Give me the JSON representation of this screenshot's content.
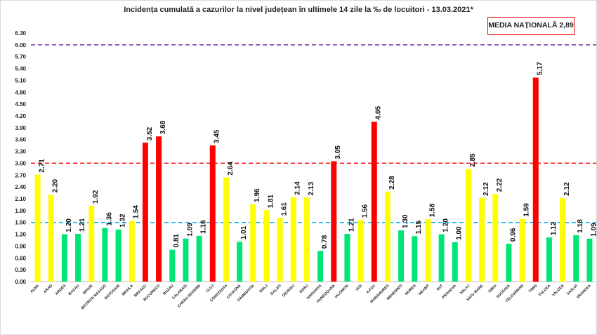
{
  "chart_data": {
    "type": "bar",
    "title": "Incidența cumulată a cazurilor la nivel județean în ultimele 14 zile la ‰ de locuitori - 13.03.2021*",
    "national_average_label": "MEDIA NAȚIONALĂ  2,89",
    "ylim": [
      0,
      6.3
    ],
    "yticks": [
      "0.00",
      "0.30",
      "0.60",
      "0.90",
      "1.20",
      "1.50",
      "1.80",
      "2.10",
      "2.40",
      "2.70",
      "3.00",
      "3.30",
      "3.60",
      "3.90",
      "4.20",
      "4.50",
      "4.80",
      "5.10",
      "5.40",
      "5.70",
      "6.00",
      "6.30"
    ],
    "grid": false,
    "reference_lines": [
      {
        "value": 6.0,
        "color": "#7030a0"
      },
      {
        "value": 3.0,
        "color": "#ff0000"
      },
      {
        "value": 1.5,
        "color": "#00b0f0"
      }
    ],
    "colors": {
      "red": "#ff0000",
      "yellow": "#ffff00",
      "green": "#00e676"
    },
    "categories": [
      "ALBA",
      "ARAD",
      "ARGES",
      "BACAU",
      "BIHOR",
      "BISTRITA NASAUD",
      "BOTOSANI",
      "BRAILA",
      "BRASOV",
      "BUCURESTI",
      "BUZAU",
      "CALARASI",
      "CARAS-SEVERIN",
      "CLUJ",
      "CONSTANTA",
      "COVASNA",
      "DAMBOVITA",
      "DOLJ",
      "GALATI",
      "GIURGIU",
      "GORJ",
      "HARGHITA",
      "HUNEDOARA",
      "IALOMITA",
      "IASI",
      "ILFOV",
      "MARAMURES",
      "MEHEDINTI",
      "MURES",
      "NEAMT",
      "OLT",
      "PRAHOVA",
      "SALAJ",
      "SATU MARE",
      "SIBIU",
      "SUCEAVA",
      "TELEORMAN",
      "TIMIS",
      "TULCEA",
      "VALCEA",
      "VASLUI",
      "VRANCEA"
    ],
    "values": [
      2.71,
      2.2,
      1.2,
      1.21,
      1.92,
      1.36,
      1.32,
      1.54,
      3.52,
      3.68,
      0.81,
      1.09,
      1.16,
      3.45,
      2.64,
      1.01,
      1.96,
      1.81,
      1.61,
      2.14,
      2.13,
      0.78,
      3.05,
      1.21,
      1.56,
      4.05,
      2.28,
      1.3,
      1.15,
      1.58,
      1.2,
      1.0,
      2.85,
      2.12,
      2.22,
      0.96,
      1.59,
      5.17,
      1.12,
      2.12,
      1.18,
      1.09
    ],
    "value_labels": [
      "2.71",
      "2.20",
      "1.20",
      "1.21",
      "1.92",
      "1.36",
      "1.32",
      "1.54",
      "3.52",
      "3.68",
      "0.81",
      "1.09",
      "1.16",
      "3.45",
      "2.64",
      "1.01",
      "1.96",
      "1.81",
      "1.61",
      "2.14",
      "2.13",
      "0.78",
      "3.05",
      "1.21",
      "1.56",
      "4.05",
      "2.28",
      "1.30",
      "1.15",
      "1.58",
      "1.20",
      "1.00",
      "2.85",
      "2.12",
      "2.22",
      "0.96",
      "1.59",
      "5.17",
      "1.12",
      "2.12",
      "1.18",
      "1.09"
    ]
  }
}
